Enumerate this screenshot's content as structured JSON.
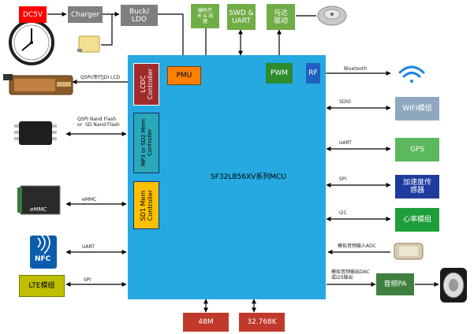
{
  "blocks": {
    "dc5v": "DC5V",
    "charger": "Charger",
    "buck_ldo": "Buck/\nLDO",
    "encoder": "编码开\n关 & 线\n键",
    "swd_uart": "SWD &\nUART",
    "motor": "马达\n驱动",
    "mcu": "SF32LB56XV系列MCU",
    "lcdc": "LCDC\nController",
    "pmu": "PMU",
    "pwm": "PWM",
    "rf": "RF",
    "mp3": "MP3 or SD2 Mem\nController",
    "sd1": "SD1 Mem\nController",
    "wifi": "WIFI模组",
    "gps": "GPS",
    "accel": "加速度传\n感器",
    "heart": "心率模组",
    "lte": "LTE模组",
    "audio_pa": "音频PA",
    "xtal_48m": "48M",
    "xtal_32k": "32.768K"
  },
  "labels": {
    "lcd": "QSPI/串行JDI LCD",
    "nand": "QSPI Nand Flash\nor  SD Nand Flash",
    "emmc": "eMMC",
    "uart_nfc": "UART",
    "spi_lte": "SPI",
    "bluetooth": "Bluetooth",
    "sdio": "SDIO",
    "uart_gps": "UART",
    "spi_accel": "SPI",
    "i2c": "I2C",
    "adc": "模拟音频输入ADC",
    "dac": "模拟音频输出DAC\n或I2S输出"
  },
  "icons": {
    "nfc_text": "NFC",
    "emmc_chip_text": "eMMC"
  },
  "colors": {
    "red": "#ff0000",
    "gray_box": "#7f7f7f",
    "olive": "#70ad47",
    "mcu_blue": "#25a9e0",
    "dark_red": "#a02b2b",
    "orange": "#ff7f00",
    "green_box": "#2e8b2e",
    "pmu_border": "#7f3f00",
    "sd1_yellow": "#ffc000",
    "xtal": "#c0392b",
    "wifi_gray": "#8fa8c0",
    "gps_green": "#5cb85c",
    "accel_navy": "#1f3b9e",
    "heart_green": "#1e9e3a",
    "lte_olive": "#bfbf00",
    "audio_green": "#3f7f3f"
  }
}
